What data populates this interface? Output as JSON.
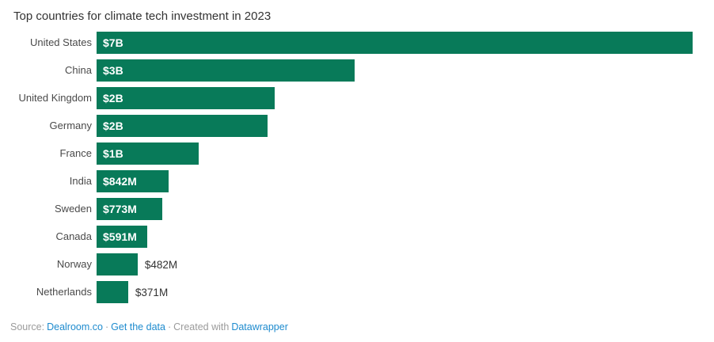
{
  "title": "Top countries for climate tech investment in 2023",
  "colors": {
    "bar": "#087a59",
    "title_text": "#333333",
    "row_label_text": "#4a4a4a",
    "value_inside_text": "#ffffff",
    "value_outside_text": "#333333",
    "footer_text": "#9b9b9b",
    "link": "#1e8bce",
    "background": "#ffffff"
  },
  "chart_data": {
    "type": "bar",
    "orientation": "horizontal",
    "title": "Top countries for climate tech investment in 2023",
    "categories": [
      "United States",
      "China",
      "United Kingdom",
      "Germany",
      "France",
      "India",
      "Sweden",
      "Canada",
      "Norway",
      "Netherlands"
    ],
    "values_musd": [
      7000,
      3030,
      2090,
      2010,
      1200,
      842,
      773,
      591,
      482,
      371
    ],
    "value_labels": [
      "$7B",
      "$3B",
      "$2B",
      "$2B",
      "$1B",
      "$842M",
      "$773M",
      "$591M",
      "$482M",
      "$371M"
    ],
    "label_position": [
      "inside",
      "inside",
      "inside",
      "inside",
      "inside",
      "inside",
      "inside",
      "inside",
      "outside",
      "outside"
    ],
    "xlim": [
      0,
      7000
    ],
    "grid": false,
    "legend": false
  },
  "footer": {
    "source_prefix": "Source:",
    "source_link": "Dealroom.co",
    "separator": "·",
    "data_link": "Get the data",
    "created_prefix": "Created with",
    "created_link": "Datawrapper"
  }
}
